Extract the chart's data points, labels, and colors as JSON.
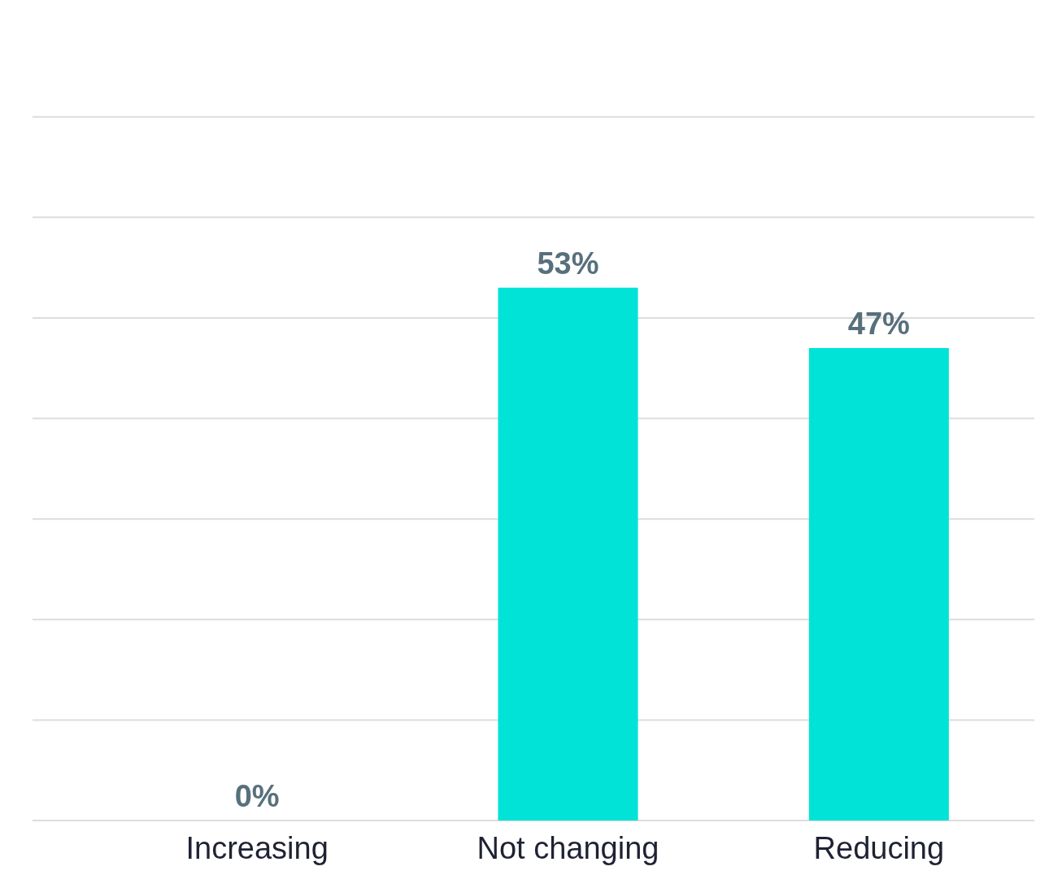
{
  "chart_data": {
    "type": "bar",
    "categories": [
      "Increasing",
      "Not changing",
      "Reducing"
    ],
    "values": [
      0,
      53,
      47
    ],
    "value_labels": [
      "0%",
      "53%",
      "47%"
    ],
    "color": "#00e3d6",
    "grid": "y",
    "tick_labels": "x"
  }
}
